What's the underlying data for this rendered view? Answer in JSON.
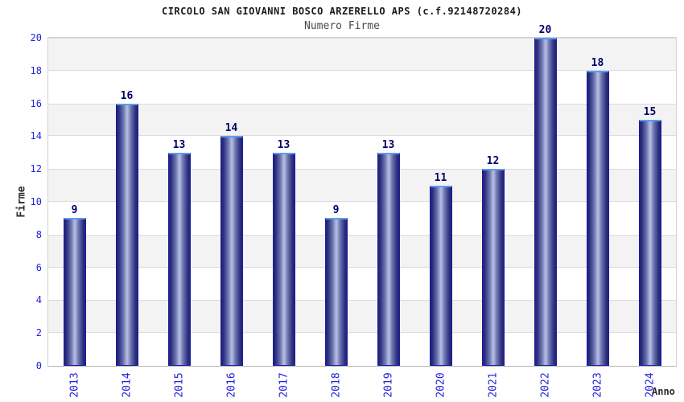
{
  "chart_data": {
    "type": "bar",
    "title": "CIRCOLO SAN GIOVANNI BOSCO ARZERELLO APS (c.f.92148720284)",
    "subtitle": "Numero Firme",
    "xlabel": "Anno",
    "ylabel": "Firme",
    "categories": [
      "2013",
      "2014",
      "2015",
      "2016",
      "2017",
      "2018",
      "2019",
      "2020",
      "2021",
      "2022",
      "2023",
      "2024"
    ],
    "values": [
      9,
      16,
      13,
      14,
      13,
      9,
      13,
      11,
      12,
      20,
      18,
      15
    ],
    "ylim": [
      0,
      20
    ],
    "ytick_step": 2,
    "grid": "horizontal-bands-every-2-units",
    "legend": "none",
    "colors": {
      "tick_label": "#2323dd",
      "value_label": "#00006a",
      "bar_edge": "#1b1bb0",
      "bar_dark": "#23236e",
      "bar_light": "#b9c0e4",
      "bar_top_border": "#5b9bee",
      "band_fill": "#f3f3f3",
      "band_line": "#dcdcdc",
      "title": "#1a1a1a",
      "subtitle": "#4a4a4a"
    }
  }
}
